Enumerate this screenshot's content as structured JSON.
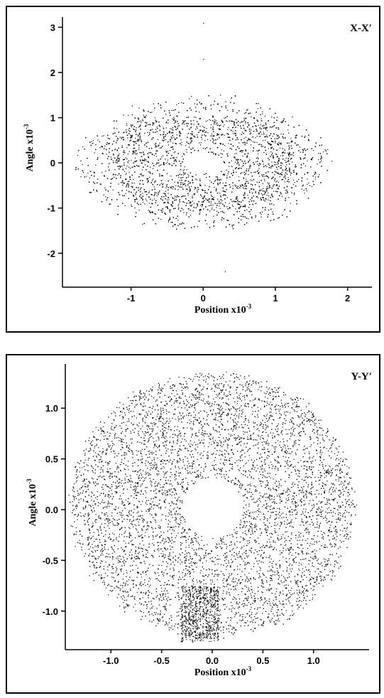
{
  "chart_data": [
    {
      "type": "scatter",
      "panel_label": "X-X′",
      "xlabel": "Position x10",
      "xlabel_exp": "-3",
      "ylabel": "Angle x10",
      "ylabel_exp": "-3",
      "xlim": [
        -1.95,
        2.2
      ],
      "ylim": [
        -2.75,
        3.1
      ],
      "x_ticks": [
        -1,
        0,
        1,
        2
      ],
      "x_tick_labels": [
        "-1",
        "0",
        "1",
        "2"
      ],
      "y_ticks": [
        -2,
        -1,
        0,
        1,
        2,
        3
      ],
      "y_tick_labels": [
        "-2",
        "-1",
        "0",
        "1",
        "2",
        "3"
      ],
      "distribution": {
        "shape": "annular ellipse",
        "center": [
          0.0,
          0.0
        ],
        "hole_radius": [
          0.2,
          0.16
        ],
        "core_radius": [
          1.2,
          1.05
        ],
        "halo_radius": [
          1.75,
          1.85
        ],
        "outliers": [
          [
            0.0,
            3.1
          ],
          [
            0.3,
            -2.4
          ],
          [
            0.0,
            2.3
          ],
          [
            -1.7,
            -0.3
          ]
        ]
      },
      "grid": false
    },
    {
      "type": "scatter",
      "panel_label": "Y-Y′",
      "xlabel": "Position x10",
      "xlabel_exp": "-3",
      "ylabel": "Angle x10",
      "ylabel_exp": "-3",
      "xlim": [
        -1.45,
        1.45
      ],
      "ylim": [
        -1.38,
        1.38
      ],
      "x_ticks": [
        -1.0,
        -0.5,
        0.0,
        0.5,
        1.0
      ],
      "x_tick_labels": [
        "-1.0",
        "-0.5",
        "0.0",
        "0.5",
        "1.0"
      ],
      "y_ticks": [
        -1.0,
        -0.5,
        0.0,
        0.5,
        1.0
      ],
      "y_tick_labels": [
        "-1.0",
        "-0.5",
        "0.0",
        "0.5",
        "1.0"
      ],
      "distribution": {
        "shape": "annulus",
        "center": [
          0.0,
          0.05
        ],
        "hole_radius": [
          0.25,
          0.25
        ],
        "outer_radius": [
          1.4,
          1.3
        ],
        "streak_region": {
          "x": [
            -0.3,
            0.05
          ],
          "y": [
            -1.3,
            -0.75
          ]
        }
      },
      "grid": false
    }
  ]
}
